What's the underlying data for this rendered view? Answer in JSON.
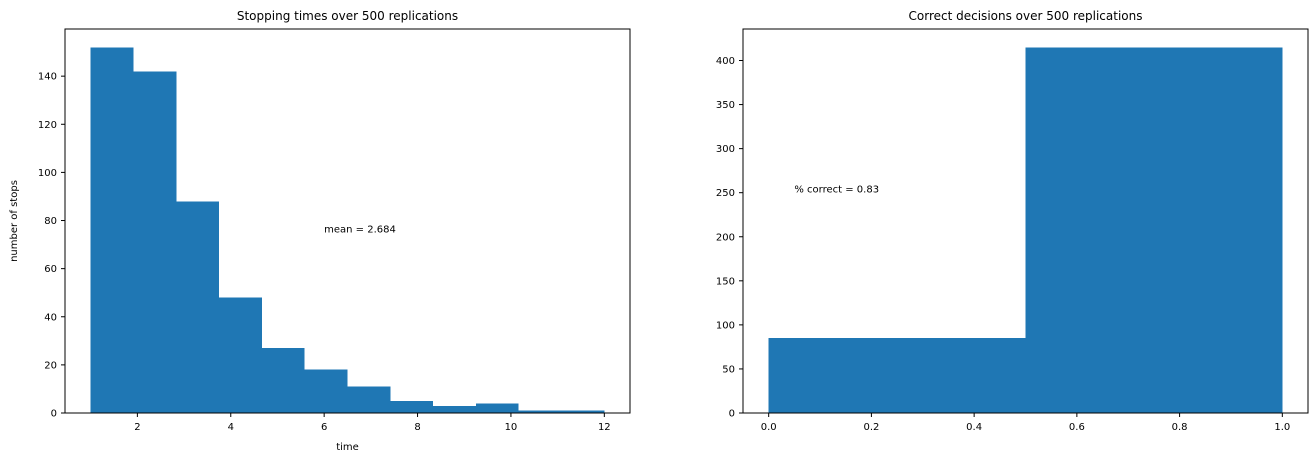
{
  "figure": {
    "background": "#ffffff",
    "bar_color": "#1f77b4",
    "axis_color": "#000000",
    "text_color": "#000000"
  },
  "chart_data": [
    {
      "type": "bar",
      "subtype": "histogram",
      "title": "Stopping times over 500 replications",
      "xlabel": "time",
      "ylabel": "number of stops",
      "bins": {
        "start": 1.0,
        "end": 12.0,
        "count": 12
      },
      "values": [
        152,
        142,
        88,
        48,
        27,
        18,
        11,
        5,
        3,
        4,
        1,
        1
      ],
      "xlim": [
        0.45,
        12.55
      ],
      "ylim": [
        0,
        159.6
      ],
      "xticks": [
        2,
        4,
        6,
        8,
        10,
        12
      ],
      "xtick_labels": [
        "2",
        "4",
        "6",
        "8",
        "10",
        "12"
      ],
      "yticks": [
        0,
        20,
        40,
        60,
        80,
        100,
        120,
        140
      ],
      "ytick_labels": [
        "0",
        "20",
        "40",
        "60",
        "80",
        "100",
        "120",
        "140"
      ],
      "annotation": {
        "text": "mean = 2.684",
        "x": 6,
        "y": 75
      },
      "grid": false,
      "legend": null
    },
    {
      "type": "bar",
      "subtype": "histogram",
      "title": "Correct decisions over 500 replications",
      "xlabel": "",
      "ylabel": "",
      "bins": {
        "start": 0.0,
        "end": 1.0,
        "count": 2
      },
      "values": [
        85,
        415
      ],
      "xlim": [
        -0.05,
        1.05
      ],
      "ylim": [
        0,
        435.75
      ],
      "xticks": [
        0.0,
        0.2,
        0.4,
        0.6,
        0.8,
        1.0
      ],
      "xtick_labels": [
        "0.0",
        "0.2",
        "0.4",
        "0.6",
        "0.8",
        "1.0"
      ],
      "yticks": [
        0,
        50,
        100,
        150,
        200,
        250,
        300,
        350,
        400
      ],
      "ytick_labels": [
        "0",
        "50",
        "100",
        "150",
        "200",
        "250",
        "300",
        "350",
        "400"
      ],
      "annotation": {
        "text": "% correct = 0.83",
        "x": 0.05,
        "y": 250
      },
      "grid": false,
      "legend": null
    }
  ]
}
